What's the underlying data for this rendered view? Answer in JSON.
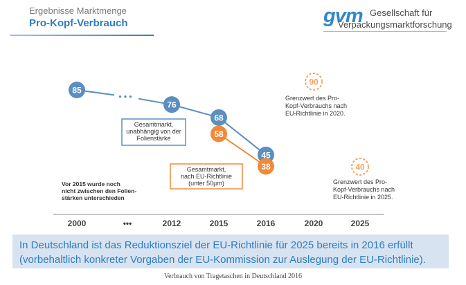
{
  "header": {
    "subtitle": "Ergebnisse Marktmenge",
    "title": "Pro-Kopf-Verbrauch"
  },
  "logo": {
    "mark": "gvm",
    "line1": "Gesellschaft für",
    "line2": "Verpackungsmarktforschung"
  },
  "chart_data": {
    "type": "line",
    "categories": [
      "2000",
      "•••",
      "2012",
      "2015",
      "2016",
      "2020",
      "2025"
    ],
    "series": [
      {
        "name": "Gesamtmarkt, unabhängig von der Folienstärke",
        "color": "#5b8ec1",
        "points": [
          {
            "x": "2000",
            "y": 85
          },
          {
            "x": "2012",
            "y": 76
          },
          {
            "x": "2015",
            "y": 68
          },
          {
            "x": "2016",
            "y": 45
          }
        ]
      },
      {
        "name": "Gesamtmarkt, nach EU-Richtlinie (unter 50µm)",
        "color": "#f08a38",
        "points": [
          {
            "x": "2015",
            "y": 58
          },
          {
            "x": "2016",
            "y": 38
          }
        ]
      }
    ],
    "targets": [
      {
        "x": "2020",
        "value": 90,
        "label": [
          "Grenzwert des Pro-",
          "Kopf-Verbrauchs nach",
          "EU-Richtlinie in 2020."
        ]
      },
      {
        "x": "2025",
        "value": 40,
        "label": [
          "Grenzwert des Pro-",
          "Kopf-Verbrauchs nach",
          "EU-Richtlinie in 2025."
        ]
      }
    ],
    "legend_boxes": [
      [
        "Gesamtmarkt,",
        "unabhängig von der",
        "Folienstärke"
      ],
      [
        "Gesamtmarkt,",
        "nach EU-Richtlinie",
        "(unter 50µm)"
      ]
    ],
    "note": [
      "Vor 2015 wurde noch",
      "nicht zwischen den Folien-",
      "stärken unterschieden"
    ],
    "gap_marker": "• • •",
    "colors": {
      "blue": "#5b8ec1",
      "orange": "#f08a38",
      "legend_border": "#5b8ec1"
    }
  },
  "banner": {
    "text": "In Deutschland ist das Reduktionsziel der EU-Richtlinie für 2025 bereits in 2016 erfüllt (vorbehaltlich konkreter Vorgaben der EU-Kommission zur Auslegung der EU-Richtlinie)."
  },
  "footer": "Verbrauch von Tragetaschen in Deutschland 2016"
}
